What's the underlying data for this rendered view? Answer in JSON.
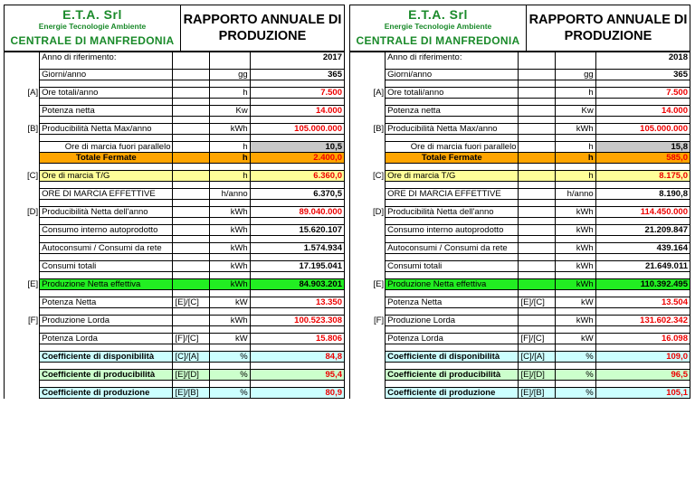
{
  "header": {
    "company": "E.T.A. Srl",
    "tagline": "Energie Tecnologie Ambiente",
    "plant": "CENTRALE DI MANFREDONIA",
    "title_line1": "RAPPORTO ANNUALE DI",
    "title_line2": "PRODUZIONE"
  },
  "colors": {
    "logo_green": "#1a8a2a",
    "red_values": "#ee0000",
    "orange_row": "#ffa500",
    "yellow_row": "#ffff99",
    "green_row": "#22ee22",
    "cyan_row": "#ccffff",
    "light_green_row": "#ccffcc",
    "grey_cell": "#c8c8c8"
  },
  "labels": {
    "anno": "Anno di riferimento:",
    "giorni": "Giorni/anno",
    "ore_totali": "Ore totali/anno",
    "potenza_netta": "Potenza netta",
    "producibilita_max": "Producibilità Netta Max/anno",
    "ore_fuori_parallelo": "Ore di marcia  fuori parallelo",
    "totale_fermate": "Totale Fermate",
    "ore_tg": "Ore di marcia T/G",
    "ore_effettive": "ORE DI MARCIA EFFETTIVE",
    "producibilita_anno": "Producibilità  Netta dell'anno",
    "consumo_interno": "Consumo interno autoprodotto",
    "autoconsumi": "Autoconsumi / Consumi da rete",
    "consumi_totali": "Consumi totali",
    "produzione_netta": "Produzione Netta effettiva",
    "potenza_netta_calc": "Potenza Netta",
    "produzione_lorda": "Produzione Lorda",
    "potenza_lorda": "Potenza Lorda",
    "coeff_disponibilita": "Coefficiente di disponibilità",
    "coeff_producibilita": "Coefficiente di producibilità",
    "coeff_produzione": "Coefficiente di produzione"
  },
  "codes": {
    "A": "[A]",
    "B": "[B]",
    "C": "[C]",
    "D": "[D]",
    "E": "[E]",
    "F": "[F]"
  },
  "formulas": {
    "en_ec": "[E]/[C]",
    "ff_fc": "[F]/[C]",
    "ec_ea": "[C]/[A]",
    "ee_ed": "[E]/[D]",
    "ee_eb": "[E]/[B]"
  },
  "units": {
    "gg": "gg",
    "h": "h",
    "kw_title": "Kw",
    "kwh": "kWh",
    "h_anno": "h/anno",
    "kw": "kW",
    "pct": "%"
  },
  "left": {
    "year": "2017",
    "giorni": "365",
    "ore_totali": "7.500",
    "potenza_netta": "14.000",
    "producibilita_max": "105.000.000",
    "ore_fuori_parallelo": "10,5",
    "totale_fermate": "2.400,0",
    "ore_tg": "6.360,0",
    "ore_effettive": "6.370,5",
    "producibilita_anno": "89.040.000",
    "consumo_interno": "15.620.107",
    "autoconsumi": "1.574.934",
    "consumi_totali": "17.195.041",
    "produzione_netta": "84.903.201",
    "potenza_netta_calc": "13.350",
    "produzione_lorda": "100.523.308",
    "potenza_lorda": "15.806",
    "coeff_disponibilita": "84,8",
    "coeff_producibilita": "95,4",
    "coeff_produzione": "80,9",
    "units_pl_potenza_netta": "kW"
  },
  "right": {
    "year": "2018",
    "giorni": "365",
    "ore_totali": "7.500",
    "potenza_netta": "14.000",
    "producibilita_max": "105.000.000",
    "ore_fuori_parallelo": "15,8",
    "totale_fermate": "585,0",
    "ore_tg": "8.175,0",
    "ore_effettive": "8.190,8",
    "producibilita_anno": "114.450.000",
    "consumo_interno": "21.209.847",
    "autoconsumi": "439.164",
    "consumi_totali": "21.649.011",
    "produzione_netta": "110.392.495",
    "potenza_netta_calc": "13.504",
    "produzione_lorda": "131.602.342",
    "potenza_lorda": "16.098",
    "coeff_disponibilita": "109,0",
    "coeff_producibilita": "96,5",
    "coeff_produzione": "105,1"
  }
}
